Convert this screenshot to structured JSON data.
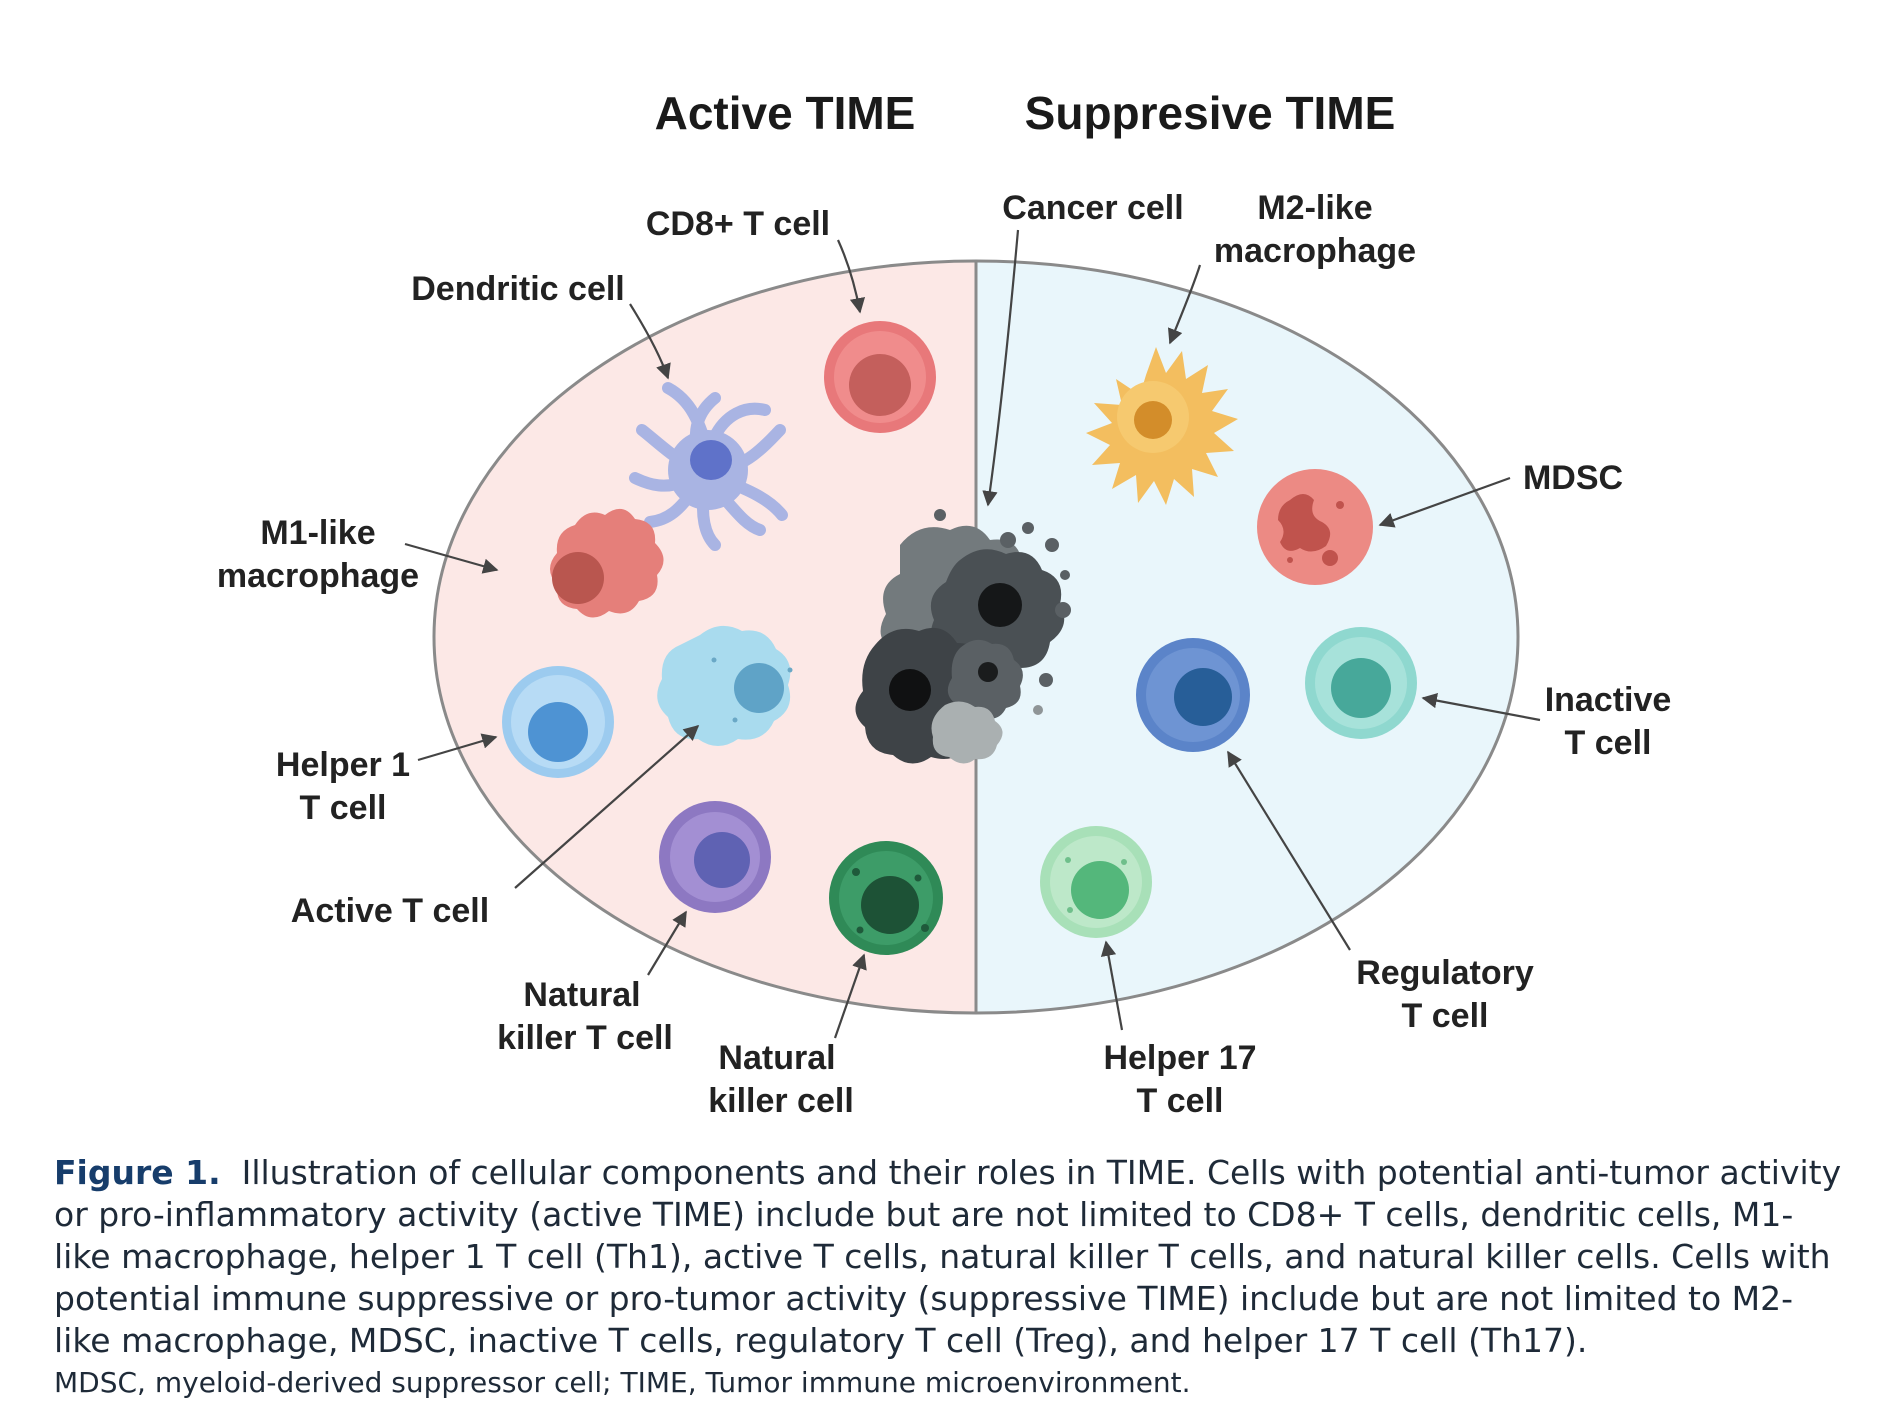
{
  "headings": {
    "active": "Active TIME",
    "suppressive": "Suppresive TIME"
  },
  "labels": {
    "cd8": "CD8+ T cell",
    "dendritic": "Dendritic cell",
    "m1_line1": "M1-like",
    "m1_line2": "macrophage",
    "helper1_line1": "Helper 1",
    "helper1_line2": "T cell",
    "active_t": "Active T cell",
    "nkt_line1": "Natural",
    "nkt_line2": "killer T cell",
    "nk_line1": "Natural",
    "nk_line2": "killer cell",
    "cancer": "Cancer cell",
    "m2_line1": "M2-like",
    "m2_line2": "macrophage",
    "mdsc": "MDSC",
    "inactive_line1": "Inactive",
    "inactive_line2": "T cell",
    "treg_line1": "Regulatory",
    "treg_line2": "T cell",
    "th17_line1": "Helper 17",
    "th17_line2": "T cell"
  },
  "colors": {
    "active_bg": "#fce8e6",
    "suppressive_bg": "#e9f6fb",
    "cd8": "#e8787a",
    "dendritic": "#a9b4e3",
    "m1": "#e57f7a",
    "helper1": "#9ccbef",
    "active_t": "#a9dbee",
    "nkt": "#8d78c2",
    "nk": "#2f8a57",
    "m2": "#f3be5f",
    "mdsc": "#ec8a84",
    "inactive": "#8fd8cf",
    "treg": "#5b84c9",
    "th17": "#a8e0b8",
    "cancer": "#4a5054"
  },
  "caption": {
    "figure_label": "Figure 1.",
    "text": "Illustration of cellular components and their roles in TIME. Cells with potential anti-tumor activity or pro-inflammatory activity (active TIME) include but are not limited to CD8+ T cells, dendritic cells, M1-like macrophage, helper 1 T cell (Th1), active T cells, natural killer T cells, and natural killer cells. Cells with potential immune suppressive or pro-tumor activity (suppressive TIME) include but are not limited to M2-like macrophage, MDSC, inactive T cells, regulatory T cell (Treg), and helper 17 T cell (Th17).",
    "abbreviations": "MDSC, myeloid-derived suppressor cell; TIME, Tumor immune microenvironment."
  }
}
